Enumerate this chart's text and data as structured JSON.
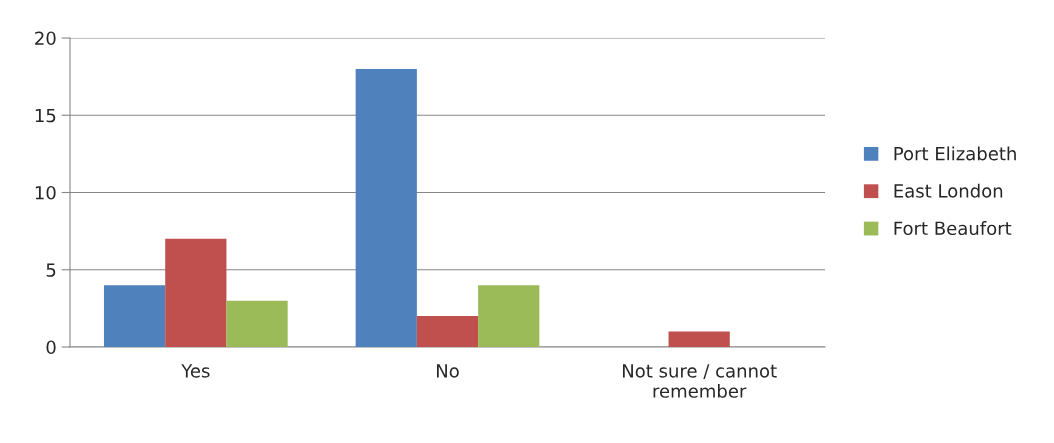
{
  "chart_data": {
    "type": "bar",
    "categories": [
      "Yes",
      "No",
      "Not sure / cannot\nremember"
    ],
    "series": [
      {
        "name": "Port Elizabeth",
        "color": "#4f81bd",
        "values": [
          4,
          18,
          0
        ]
      },
      {
        "name": "East London",
        "color": "#c0504d",
        "values": [
          7,
          2,
          1
        ]
      },
      {
        "name": "Fort Beaufort",
        "color": "#9bbb59",
        "values": [
          3,
          4,
          0
        ]
      }
    ],
    "ylim": [
      0,
      20
    ],
    "yticks": [
      0,
      5,
      10,
      15,
      20
    ],
    "grid": "y",
    "legend": "right"
  }
}
